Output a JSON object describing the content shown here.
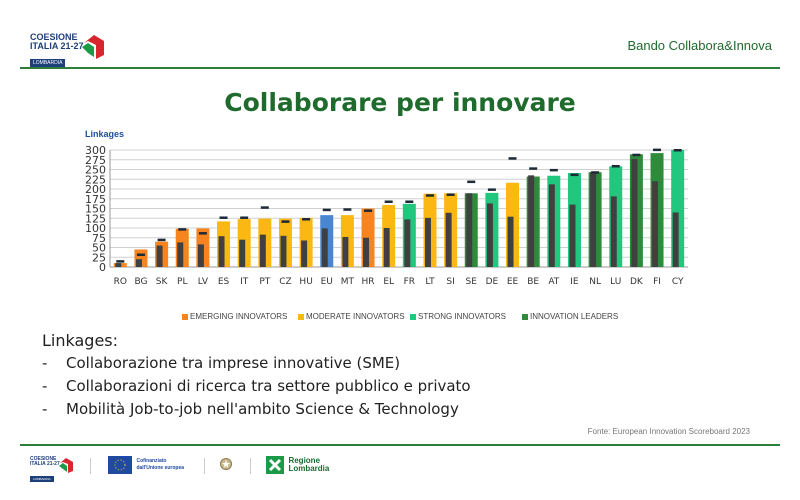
{
  "header": {
    "logo_text": [
      "COESIONE",
      "ITALIA 21-27"
    ],
    "logo_badge": "LOMBARDIA",
    "bando": "Bando Collabora&Innova"
  },
  "title": "Collaborare per innovare",
  "chart_data": {
    "type": "bar",
    "title": "Linkages",
    "ylim": [
      0,
      300
    ],
    "yticks": [
      0,
      25,
      50,
      75,
      100,
      125,
      150,
      175,
      200,
      225,
      250,
      275,
      300
    ],
    "grid": true,
    "legend_position": "bottom",
    "categories": [
      "RO",
      "BG",
      "SK",
      "PL",
      "LV",
      "ES",
      "IT",
      "PT",
      "CZ",
      "HU",
      "EU",
      "MT",
      "HR",
      "EL",
      "FR",
      "LT",
      "SI",
      "SE",
      "DE",
      "EE",
      "BE",
      "AT",
      "IE",
      "NL",
      "LU",
      "DK",
      "FI",
      "CY"
    ],
    "groups": [
      "emerging",
      "emerging",
      "emerging",
      "emerging",
      "emerging",
      "moderate",
      "moderate",
      "moderate",
      "moderate",
      "moderate",
      "eu",
      "moderate",
      "emerging",
      "moderate",
      "strong",
      "moderate",
      "moderate",
      "leader",
      "strong",
      "moderate",
      "leader",
      "strong",
      "strong",
      "leader",
      "strong",
      "leader",
      "leader",
      "strong"
    ],
    "values": [
      10,
      45,
      65,
      98,
      99,
      117,
      123,
      124,
      124,
      126,
      133,
      133,
      150,
      159,
      162,
      188,
      189,
      189,
      190,
      216,
      232,
      234,
      241,
      243,
      258,
      289,
      292,
      300
    ],
    "inner_values": [
      10,
      20,
      55,
      63,
      58,
      79,
      70,
      83,
      80,
      68,
      99,
      77,
      75,
      100,
      122,
      126,
      139,
      189,
      163,
      129,
      235,
      212,
      160,
      243,
      181,
      277,
      220,
      140
    ],
    "marker_values": [
      15,
      32,
      70,
      97,
      87,
      127,
      127,
      153,
      117,
      123,
      147,
      148,
      145,
      168,
      168,
      184,
      186,
      219,
      199,
      279,
      253,
      249,
      237,
      243,
      259,
      288,
      301,
      300
    ],
    "legend": [
      {
        "key": "emerging",
        "label": "EMERGING INNOVATORS",
        "color": "#f7841e"
      },
      {
        "key": "moderate",
        "label": "MODERATE INNOVATORS",
        "color": "#fbb812"
      },
      {
        "key": "strong",
        "label": "STRONG INNOVATORS",
        "color": "#22c77e"
      },
      {
        "key": "leader",
        "label": "INNOVATION LEADERS",
        "color": "#2e8b3a"
      }
    ],
    "colors": {
      "eu": "#4a86d0",
      "inner": "#404040",
      "marker": "#1e2a38"
    }
  },
  "body": {
    "heading": "Linkages:",
    "bullets": [
      "Collaborazione tra imprese innovative (SME)",
      "Collaborazioni di ricerca tra settore pubblico e privato",
      "Mobilità Job-to-job nell'ambito Science & Technology"
    ],
    "bullet_mark": "-"
  },
  "source": "Fonte: European Innovation Scoreboard 2023",
  "footer": {
    "eu_text": [
      "Cofinanziato",
      "dall'Unione europea"
    ],
    "region_text": [
      "Regione",
      "Lombardia"
    ]
  }
}
